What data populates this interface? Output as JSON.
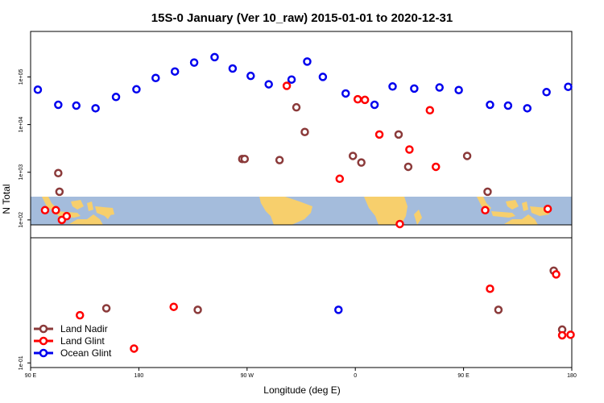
{
  "chart_data": {
    "type": "scatter",
    "title": "15S-0 January (Ver 10_raw)   2015-01-01 to 2020-12-31",
    "xlabel": "Longitude (deg E)",
    "ylabel": "N Total",
    "x_ticks": [
      {
        "value": 90,
        "label": "90 E"
      },
      {
        "value": 180,
        "label": "180"
      },
      {
        "value": 270,
        "label": "90 W"
      },
      {
        "value": 360,
        "label": "0"
      },
      {
        "value": 450,
        "label": "90 E"
      },
      {
        "value": 540,
        "label": "180"
      }
    ],
    "xlim": [
      90,
      540
    ],
    "y_scale": "log",
    "ylim": [
      0.08,
      900000
    ],
    "y_ticks": [
      {
        "value": 0.1,
        "label": "1e-01"
      },
      {
        "value": 100,
        "label": "1e+02"
      },
      {
        "value": 1000,
        "label": "1e+03"
      },
      {
        "value": 10000,
        "label": "1e+04"
      },
      {
        "value": 100000,
        "label": "1e+05"
      }
    ],
    "legend_position": "bottom-left",
    "grid": false,
    "background_band": "world map strip along the latitude band",
    "colors": {
      "Land Nadir": "#8b3a3a",
      "Land Glint": "#ff0000",
      "Ocean Glint": "#0000ee",
      "ocean": "#a4bcdc",
      "land": "#f7cf6c"
    },
    "series": [
      {
        "name": "Land Nadir",
        "points": [
          {
            "x": 113,
            "y": 960
          },
          {
            "x": 114,
            "y": 390
          },
          {
            "x": 144,
            "y": 2.3
          },
          {
            "x": 144,
            "y": 1.8
          },
          {
            "x": 149,
            "y": 0.27
          },
          {
            "x": 153,
            "y": 1.4
          },
          {
            "x": 229,
            "y": 1.3
          },
          {
            "x": 266,
            "y": 1900
          },
          {
            "x": 268,
            "y": 1900
          },
          {
            "x": 266,
            "y": 1900
          },
          {
            "x": 287,
            "y": 1750
          },
          {
            "x": 297,
            "y": 1800
          },
          {
            "x": 358,
            "y": 2200
          },
          {
            "x": 365,
            "y": 1600
          },
          {
            "x": 371,
            "y": 4300
          },
          {
            "x": 396,
            "y": 6200
          },
          {
            "x": 380,
            "y": 6200
          },
          {
            "x": 397,
            "y": 0.12
          },
          {
            "x": 400,
            "y": 0.04
          },
          {
            "x": 527,
            "y": 7.2
          },
          {
            "x": 532,
            "y": 0.11
          },
          {
            "x": 539,
            "y": 0.39
          }
        ]
      },
      {
        "name": "Land Glint",
        "points": []
      },
      {
        "name": "Ocean Glint",
        "points": []
      }
    ]
  }
}
